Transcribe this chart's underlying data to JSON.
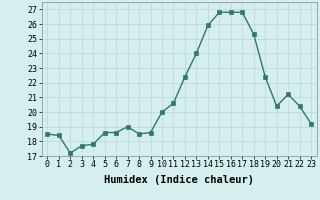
{
  "x": [
    0,
    1,
    2,
    3,
    4,
    5,
    6,
    7,
    8,
    9,
    10,
    11,
    12,
    13,
    14,
    15,
    16,
    17,
    18,
    19,
    20,
    21,
    22,
    23
  ],
  "y": [
    18.5,
    18.4,
    17.2,
    17.7,
    17.8,
    18.6,
    18.6,
    19.0,
    18.5,
    18.6,
    20.0,
    20.6,
    22.4,
    24.0,
    25.9,
    26.8,
    26.8,
    26.8,
    25.3,
    22.4,
    20.4,
    21.2,
    20.4,
    19.2
  ],
  "line_color": "#2d7a6a",
  "marker": "s",
  "marker_size": 2.5,
  "bg_color": "#d6eeee",
  "grid_color": "#b8d8d8",
  "xlabel": "Humidex (Indice chaleur)",
  "ylim": [
    17,
    27.5
  ],
  "xlim": [
    -0.5,
    23.5
  ],
  "yticks": [
    17,
    18,
    19,
    20,
    21,
    22,
    23,
    24,
    25,
    26,
    27
  ],
  "xticks": [
    0,
    1,
    2,
    3,
    4,
    5,
    6,
    7,
    8,
    9,
    10,
    11,
    12,
    13,
    14,
    15,
    16,
    17,
    18,
    19,
    20,
    21,
    22,
    23
  ],
  "xtick_labels": [
    "0",
    "1",
    "2",
    "3",
    "4",
    "5",
    "6",
    "7",
    "8",
    "9",
    "10",
    "11",
    "12",
    "13",
    "14",
    "15",
    "16",
    "17",
    "18",
    "19",
    "20",
    "21",
    "22",
    "23"
  ],
  "font_size": 6.0,
  "xlabel_fontsize": 7.5,
  "line_width": 1.0
}
